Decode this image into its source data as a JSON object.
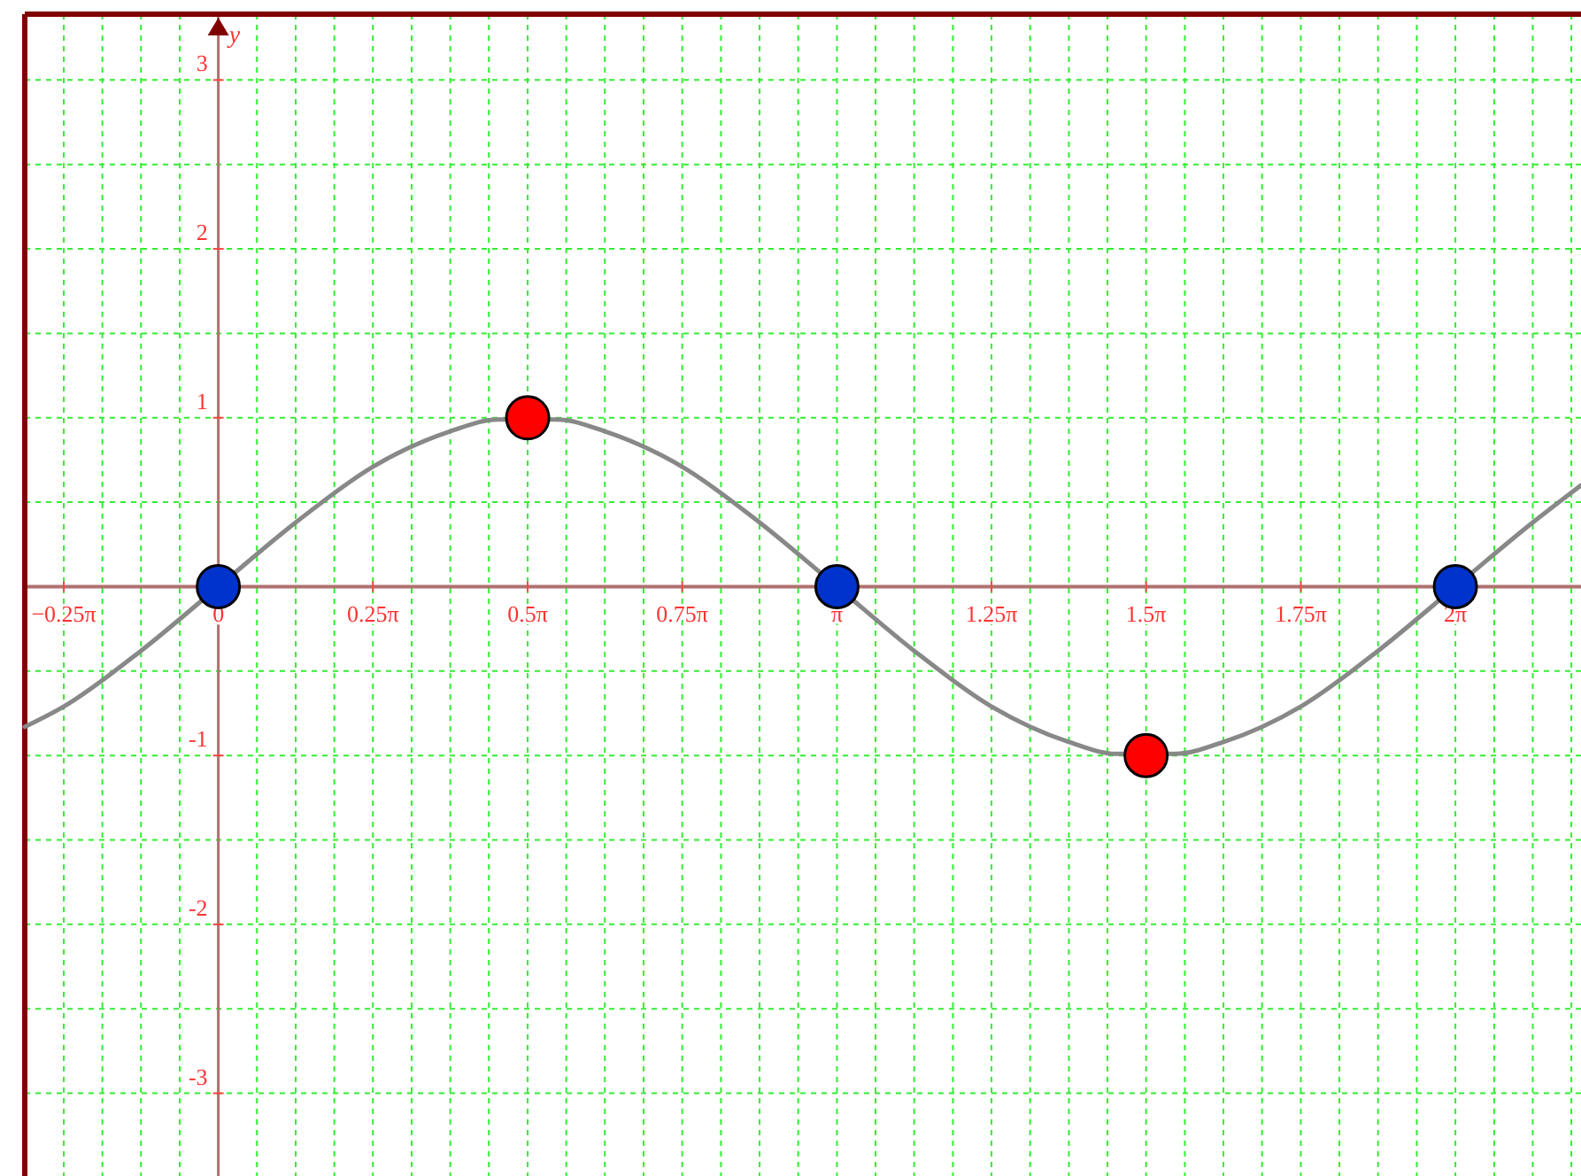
{
  "chart_data": {
    "type": "line",
    "ylabel": "y",
    "grid": true,
    "marker": "none",
    "line_style": "solid",
    "xlim": [
      -0.983,
      6.921
    ],
    "ylim": [
      -3.49,
      3.39
    ],
    "xticks": [
      {
        "value": -0.982,
        "label": null
      },
      {
        "value": -0.785,
        "label": "−0.25π"
      },
      {
        "value": -0.589,
        "label": null
      },
      {
        "value": -0.393,
        "label": null
      },
      {
        "value": -0.196,
        "label": null
      },
      {
        "value": 0,
        "label": "0"
      },
      {
        "value": 0.196,
        "label": null
      },
      {
        "value": 0.393,
        "label": null
      },
      {
        "value": 0.589,
        "label": null
      },
      {
        "value": 0.785,
        "label": "0.25π"
      },
      {
        "value": 0.982,
        "label": null
      },
      {
        "value": 1.178,
        "label": null
      },
      {
        "value": 1.374,
        "label": null
      },
      {
        "value": 1.571,
        "label": "0.5π"
      },
      {
        "value": 1.767,
        "label": null
      },
      {
        "value": 1.963,
        "label": null
      },
      {
        "value": 2.16,
        "label": null
      },
      {
        "value": 2.356,
        "label": "0.75π"
      },
      {
        "value": 2.553,
        "label": null
      },
      {
        "value": 2.749,
        "label": null
      },
      {
        "value": 2.945,
        "label": null
      },
      {
        "value": 3.142,
        "label": "π"
      },
      {
        "value": 3.338,
        "label": null
      },
      {
        "value": 3.534,
        "label": null
      },
      {
        "value": 3.731,
        "label": null
      },
      {
        "value": 3.927,
        "label": "1.25π"
      },
      {
        "value": 4.123,
        "label": null
      },
      {
        "value": 4.32,
        "label": null
      },
      {
        "value": 4.516,
        "label": null
      },
      {
        "value": 4.712,
        "label": "1.5π"
      },
      {
        "value": 4.909,
        "label": null
      },
      {
        "value": 5.105,
        "label": null
      },
      {
        "value": 5.301,
        "label": null
      },
      {
        "value": 5.498,
        "label": "1.75π"
      },
      {
        "value": 5.694,
        "label": null
      },
      {
        "value": 5.89,
        "label": null
      },
      {
        "value": 6.087,
        "label": null
      },
      {
        "value": 6.283,
        "label": "2π"
      },
      {
        "value": 6.48,
        "label": null
      },
      {
        "value": 6.676,
        "label": null
      },
      {
        "value": 6.872,
        "label": null
      }
    ],
    "yticks": [
      {
        "value": -3,
        "label": "-3"
      },
      {
        "value": -2.5,
        "label": null
      },
      {
        "value": -2,
        "label": "-2"
      },
      {
        "value": -1.5,
        "label": null
      },
      {
        "value": -1,
        "label": "-1"
      },
      {
        "value": -0.5,
        "label": null
      },
      {
        "value": 0.5,
        "label": null
      },
      {
        "value": 1,
        "label": "1"
      },
      {
        "value": 1.5,
        "label": null
      },
      {
        "value": 2,
        "label": "2"
      },
      {
        "value": 2.5,
        "label": null
      },
      {
        "value": 3,
        "label": "3"
      }
    ],
    "series": [
      {
        "color": "#888888",
        "x": [
          -0.983,
          -0.785,
          -0.393,
          0,
          0.393,
          0.785,
          1.178,
          1.42,
          1.72,
          1.963,
          2.356,
          2.749,
          3.142,
          3.534,
          3.927,
          4.32,
          4.56,
          4.86,
          5.105,
          5.498,
          5.89,
          6.283,
          6.676,
          6.921
        ],
        "values": [
          -0.83,
          -0.71,
          -0.38,
          0,
          0.38,
          0.71,
          0.92,
          0.99,
          0.99,
          0.92,
          0.71,
          0.38,
          0,
          -0.38,
          -0.71,
          -0.92,
          -0.99,
          -0.99,
          -0.92,
          -0.71,
          -0.38,
          0,
          0.38,
          0.6
        ]
      },
      {
        "type": "scatter",
        "color": "#0033cc",
        "marker": "circle",
        "x": [
          0,
          3.142,
          6.283
        ],
        "values": [
          0,
          0,
          0
        ]
      },
      {
        "type": "scatter",
        "color": "#ff0000",
        "marker": "circle",
        "x": [
          1.571,
          4.712
        ],
        "values": [
          1,
          -1
        ]
      }
    ]
  }
}
